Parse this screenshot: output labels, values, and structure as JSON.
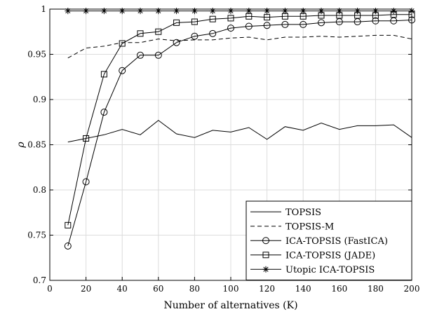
{
  "chart_data": {
    "type": "line",
    "xlabel": "Number of alternatives (K)",
    "ylabel": "ρ",
    "xlim": [
      0,
      200
    ],
    "ylim": [
      0.7,
      1.0
    ],
    "xticks": [
      0,
      20,
      40,
      60,
      80,
      100,
      120,
      140,
      160,
      180,
      200
    ],
    "yticks": [
      0.7,
      0.75,
      0.8,
      0.85,
      0.9,
      0.95,
      1
    ],
    "xtick_labels": [
      "0",
      "20",
      "40",
      "60",
      "80",
      "100",
      "120",
      "140",
      "160",
      "180",
      "200"
    ],
    "ytick_labels": [
      "0.7",
      "0.75",
      "0.8",
      "0.85",
      "0.9",
      "0.95",
      "1"
    ],
    "grid": true,
    "legend_position": "bottom-right",
    "x": [
      10,
      20,
      30,
      40,
      50,
      60,
      70,
      80,
      90,
      100,
      110,
      120,
      130,
      140,
      150,
      160,
      170,
      180,
      190,
      200
    ],
    "series": [
      {
        "name": "TOPSIS",
        "line_style": "solid",
        "marker": "none",
        "values": [
          0.853,
          0.857,
          0.861,
          0.867,
          0.861,
          0.877,
          0.862,
          0.858,
          0.866,
          0.864,
          0.869,
          0.856,
          0.87,
          0.866,
          0.874,
          0.867,
          0.871,
          0.871,
          0.872,
          0.858
        ]
      },
      {
        "name": "TOPSIS-M",
        "line_style": "dashed",
        "marker": "none",
        "values": [
          0.946,
          0.957,
          0.959,
          0.963,
          0.963,
          0.967,
          0.965,
          0.966,
          0.966,
          0.968,
          0.969,
          0.966,
          0.969,
          0.969,
          0.97,
          0.969,
          0.97,
          0.971,
          0.971,
          0.967
        ]
      },
      {
        "name": "ICA-TOPSIS (FastICA)",
        "line_style": "solid",
        "marker": "circle",
        "values": [
          0.738,
          0.809,
          0.886,
          0.932,
          0.949,
          0.949,
          0.963,
          0.97,
          0.973,
          0.979,
          0.981,
          0.982,
          0.983,
          0.983,
          0.985,
          0.986,
          0.986,
          0.987,
          0.987,
          0.988
        ]
      },
      {
        "name": "ICA-TOPSIS (JADE)",
        "line_style": "solid",
        "marker": "square",
        "values": [
          0.761,
          0.857,
          0.928,
          0.962,
          0.973,
          0.975,
          0.985,
          0.986,
          0.989,
          0.99,
          0.992,
          0.991,
          0.992,
          0.992,
          0.993,
          0.993,
          0.993,
          0.993,
          0.994,
          0.994
        ]
      },
      {
        "name": "Utopic ICA-TOPSIS",
        "line_style": "solid",
        "marker": "star",
        "values": [
          0.998,
          0.998,
          0.998,
          0.998,
          0.998,
          0.998,
          0.998,
          0.998,
          0.998,
          0.998,
          0.998,
          0.998,
          0.998,
          0.998,
          0.998,
          0.998,
          0.998,
          0.998,
          0.998,
          0.998
        ]
      }
    ]
  }
}
